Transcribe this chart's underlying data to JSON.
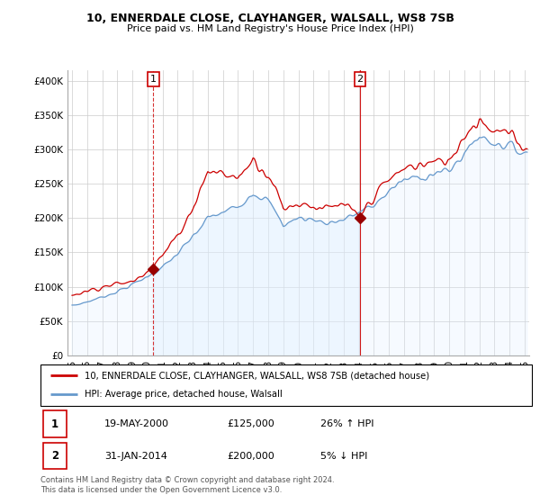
{
  "title": "10, ENNERDALE CLOSE, CLAYHANGER, WALSALL, WS8 7SB",
  "subtitle": "Price paid vs. HM Land Registry's House Price Index (HPI)",
  "ylabel_ticks": [
    "£0",
    "£50K",
    "£100K",
    "£150K",
    "£200K",
    "£250K",
    "£300K",
    "£350K",
    "£400K"
  ],
  "ytick_vals": [
    0,
    50000,
    100000,
    150000,
    200000,
    250000,
    300000,
    350000,
    400000
  ],
  "ylim": [
    0,
    415000
  ],
  "xlim_start": 1994.7,
  "xlim_end": 2025.3,
  "legend_line1": "10, ENNERDALE CLOSE, CLAYHANGER, WALSALL, WS8 7SB (detached house)",
  "legend_line2": "HPI: Average price, detached house, Walsall",
  "line_color_red": "#cc0000",
  "line_color_blue": "#6699cc",
  "fill_color_blue": "#ddeeff",
  "annotation1_label": "1",
  "annotation1_date": "19-MAY-2000",
  "annotation1_price": "£125,000",
  "annotation1_hpi": "26% ↑ HPI",
  "annotation2_label": "2",
  "annotation2_date": "31-JAN-2014",
  "annotation2_price": "£200,000",
  "annotation2_hpi": "5% ↓ HPI",
  "footer": "Contains HM Land Registry data © Crown copyright and database right 2024.\nThis data is licensed under the Open Government Licence v3.0.",
  "ann1_x": 2000.38,
  "ann1_y": 125000,
  "ann2_x": 2014.08,
  "ann2_y": 200000
}
